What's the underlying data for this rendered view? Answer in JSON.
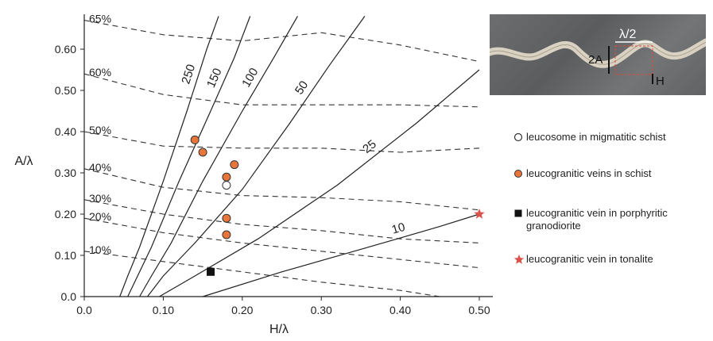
{
  "chart_data": {
    "type": "scatter",
    "xlabel": "H/λ",
    "ylabel": "A/λ",
    "xlim": [
      0.0,
      0.55
    ],
    "ylim": [
      0.0,
      0.68
    ],
    "x_ticks": [
      "0.0",
      "0.10",
      "0.20",
      "0.30",
      "0.40",
      "0.50"
    ],
    "y_ticks": [
      "0.0",
      "0.10",
      "0.20",
      "0.30",
      "0.40",
      "0.50",
      "0.60"
    ],
    "solid_contours": [
      {
        "label": "250",
        "points": [
          [
            0.045,
            0.0
          ],
          [
            0.055,
            0.05
          ],
          [
            0.07,
            0.12
          ],
          [
            0.1,
            0.28
          ],
          [
            0.13,
            0.45
          ],
          [
            0.155,
            0.6
          ],
          [
            0.17,
            0.68
          ]
        ]
      },
      {
        "label": "150",
        "points": [
          [
            0.055,
            0.0
          ],
          [
            0.065,
            0.04
          ],
          [
            0.085,
            0.12
          ],
          [
            0.12,
            0.28
          ],
          [
            0.16,
            0.45
          ],
          [
            0.19,
            0.58
          ],
          [
            0.21,
            0.68
          ]
        ]
      },
      {
        "label": "100",
        "points": [
          [
            0.07,
            0.0
          ],
          [
            0.085,
            0.05
          ],
          [
            0.11,
            0.13
          ],
          [
            0.15,
            0.28
          ],
          [
            0.2,
            0.45
          ],
          [
            0.24,
            0.58
          ],
          [
            0.27,
            0.68
          ]
        ]
      },
      {
        "label": "50",
        "points": [
          [
            0.08,
            0.0
          ],
          [
            0.1,
            0.05
          ],
          [
            0.14,
            0.13
          ],
          [
            0.2,
            0.26
          ],
          [
            0.26,
            0.42
          ],
          [
            0.31,
            0.56
          ],
          [
            0.355,
            0.68
          ]
        ]
      },
      {
        "label": "25",
        "points": [
          [
            0.095,
            0.0
          ],
          [
            0.14,
            0.05
          ],
          [
            0.22,
            0.14
          ],
          [
            0.32,
            0.27
          ],
          [
            0.42,
            0.42
          ],
          [
            0.5,
            0.55
          ]
        ]
      },
      {
        "label": "10",
        "points": [
          [
            0.15,
            0.0
          ],
          [
            0.25,
            0.06
          ],
          [
            0.36,
            0.12
          ],
          [
            0.45,
            0.17
          ],
          [
            0.5,
            0.2
          ]
        ]
      }
    ],
    "dashed_contours": [
      {
        "label": "65%",
        "points": [
          [
            0.0,
            0.67
          ],
          [
            0.1,
            0.635
          ],
          [
            0.2,
            0.62
          ],
          [
            0.3,
            0.64
          ],
          [
            0.4,
            0.61
          ],
          [
            0.5,
            0.57
          ]
        ]
      },
      {
        "label": "60%",
        "points": [
          [
            0.0,
            0.54
          ],
          [
            0.1,
            0.49
          ],
          [
            0.2,
            0.465
          ],
          [
            0.3,
            0.465
          ],
          [
            0.4,
            0.465
          ],
          [
            0.5,
            0.46
          ]
        ]
      },
      {
        "label": "50%",
        "points": [
          [
            0.0,
            0.4
          ],
          [
            0.1,
            0.365
          ],
          [
            0.2,
            0.36
          ],
          [
            0.3,
            0.36
          ],
          [
            0.4,
            0.35
          ],
          [
            0.5,
            0.36
          ]
        ]
      },
      {
        "label": "40%",
        "points": [
          [
            0.0,
            0.31
          ],
          [
            0.1,
            0.265
          ],
          [
            0.2,
            0.245
          ],
          [
            0.3,
            0.24
          ],
          [
            0.4,
            0.23
          ],
          [
            0.5,
            0.21
          ]
        ]
      },
      {
        "label": "30%",
        "points": [
          [
            0.0,
            0.235
          ],
          [
            0.1,
            0.2
          ],
          [
            0.2,
            0.175
          ],
          [
            0.3,
            0.16
          ],
          [
            0.4,
            0.14
          ],
          [
            0.5,
            0.13
          ]
        ]
      },
      {
        "label": "20%",
        "points": [
          [
            0.0,
            0.19
          ],
          [
            0.1,
            0.155
          ],
          [
            0.2,
            0.13
          ],
          [
            0.3,
            0.11
          ],
          [
            0.4,
            0.09
          ],
          [
            0.5,
            0.07
          ]
        ]
      },
      {
        "label": "10%",
        "points": [
          [
            0.0,
            0.11
          ],
          [
            0.1,
            0.085
          ],
          [
            0.2,
            0.06
          ],
          [
            0.3,
            0.035
          ],
          [
            0.4,
            0.015
          ],
          [
            0.45,
            0.0
          ]
        ]
      }
    ],
    "series": [
      {
        "name": "leucosome in migmatitic schist",
        "marker": "open-circle",
        "color": "#ffffff",
        "points": [
          [
            0.18,
            0.27
          ]
        ]
      },
      {
        "name": "leucogranitic veins in schist",
        "marker": "circle",
        "color": "#e8763a",
        "points": [
          [
            0.14,
            0.38
          ],
          [
            0.15,
            0.35
          ],
          [
            0.18,
            0.29
          ],
          [
            0.19,
            0.32
          ],
          [
            0.18,
            0.19
          ],
          [
            0.18,
            0.15
          ]
        ]
      },
      {
        "name": "leucogranitic vein in porphyritic granodiorite",
        "marker": "square",
        "color": "#111111",
        "points": [
          [
            0.16,
            0.06
          ]
        ]
      },
      {
        "name": "leucogranitic vein in tonalite",
        "marker": "star",
        "color": "#d9534a",
        "points": [
          [
            0.5,
            0.2
          ]
        ]
      }
    ],
    "legend_position": "right",
    "inset_labels": {
      "wavelength_half": "λ/2",
      "amplitude": "2A",
      "height": "H"
    },
    "grid": false
  }
}
